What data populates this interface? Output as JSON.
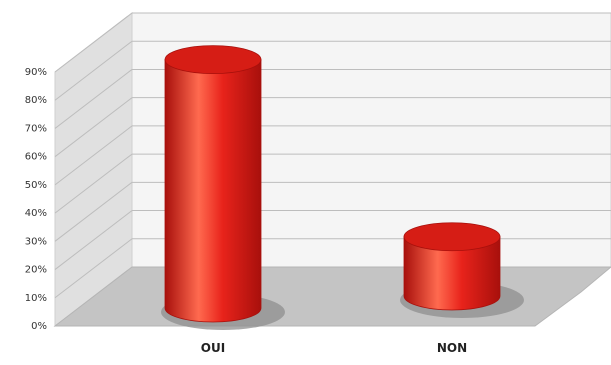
{
  "chart_data": {
    "type": "bar",
    "style": "3d-cylinder",
    "categories": [
      "OUI",
      "NON"
    ],
    "values": [
      88,
      21
    ],
    "value_unit": "%",
    "ylim": [
      0,
      90
    ],
    "yticks": [
      0,
      10,
      20,
      30,
      40,
      50,
      60,
      70,
      80,
      90
    ],
    "ytick_labels": [
      "0%",
      "10%",
      "20%",
      "30%",
      "40%",
      "50%",
      "60%",
      "70%",
      "80%",
      "90%"
    ],
    "title": "",
    "xlabel": "",
    "ylabel": "",
    "grid": true,
    "legend": "none",
    "colors": {
      "bar": "#e8231b",
      "bar_dark": "#a8100c",
      "bar_light": "#ff6a4f",
      "bar_top": "#d61d15",
      "floor": "#c4c4c4",
      "wall": "#e0e0e0",
      "back_wall": "#f5f5f5",
      "gridline": "#bdbdbd"
    }
  }
}
